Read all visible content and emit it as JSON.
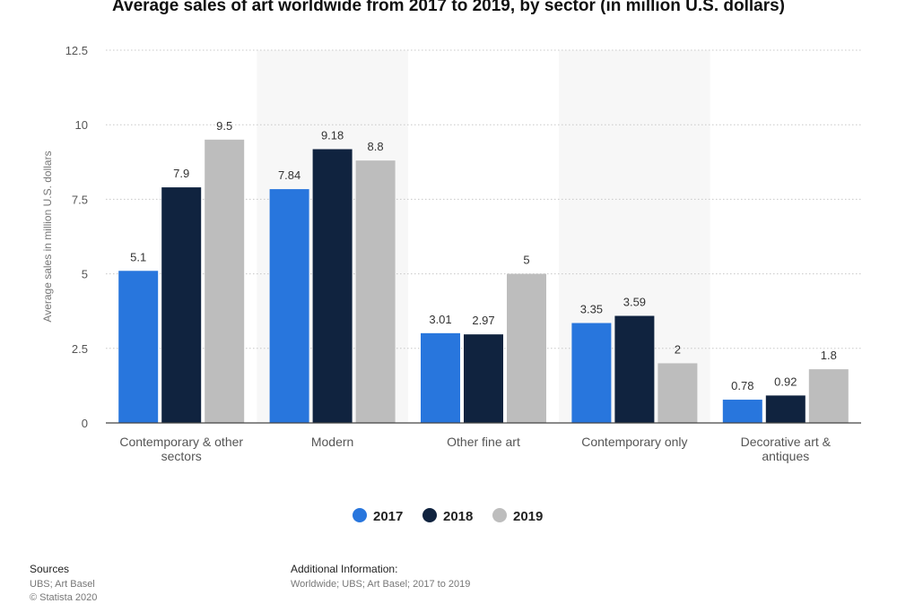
{
  "chart_data": {
    "type": "bar",
    "title": "Average sales of art worldwide from 2017 to 2019, by sector (in million U.S. dollars)",
    "xlabel": "",
    "ylabel": "Average sales in million U.S. dollars",
    "ylim": [
      0,
      12.5
    ],
    "yticks": [
      "0",
      "2.5",
      "5",
      "7.5",
      "10",
      "12.5"
    ],
    "yticks_values": [
      0,
      2.5,
      5,
      7.5,
      10,
      12.5
    ],
    "grid": true,
    "legend_position": "bottom-center",
    "categories": [
      [
        "Contemporary & other",
        "sectors"
      ],
      [
        "Modern"
      ],
      [
        "Other fine art"
      ],
      [
        "Contemporary only"
      ],
      [
        "Decorative art &",
        "antiques"
      ]
    ],
    "series": [
      {
        "name": "2017",
        "color": "#2876dd",
        "values": [
          5.1,
          7.84,
          3.01,
          3.35,
          0.78
        ],
        "labels": [
          "5.1",
          "7.84",
          "3.01",
          "3.35",
          "0.78"
        ]
      },
      {
        "name": "2018",
        "color": "#10233f",
        "values": [
          7.9,
          9.18,
          2.97,
          3.59,
          0.92
        ],
        "labels": [
          "7.9",
          "9.18",
          "2.97",
          "3.59",
          "0.92"
        ]
      },
      {
        "name": "2019",
        "color": "#bdbdbd",
        "values": [
          9.5,
          8.8,
          5,
          2,
          1.8
        ],
        "labels": [
          "9.5",
          "8.8",
          "5",
          "2",
          "1.8"
        ]
      }
    ]
  },
  "footer": {
    "sources_title": "Sources",
    "sources_lines": [
      "UBS; Art Basel",
      "© Statista 2020"
    ],
    "additional_title": "Additional Information:",
    "additional_text": "Worldwide; UBS; Art Basel; 2017 to 2019"
  }
}
